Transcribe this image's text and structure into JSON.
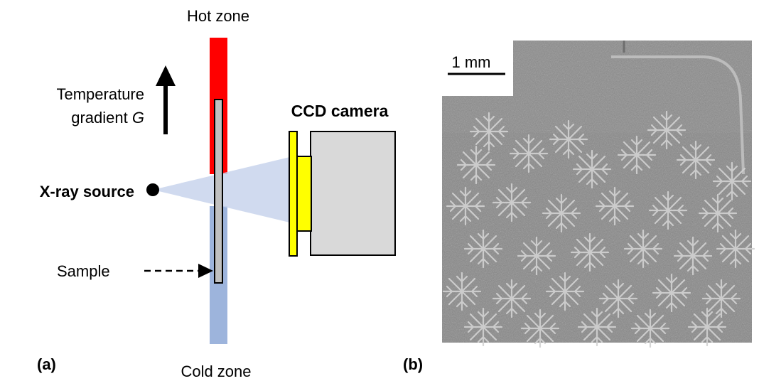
{
  "panel_a": {
    "label": "(a)",
    "hot_zone_label": "Hot zone",
    "cold_zone_label": "Cold zone",
    "gradient_label_line1": "Temperature",
    "gradient_label_line2_prefix": "gradient ",
    "gradient_label_symbol": "G",
    "xray_source_label": "X-ray source",
    "sample_label": "Sample",
    "camera_label": "CCD camera"
  },
  "panel_b": {
    "label": "(b)",
    "scale_bar_label": "1 mm"
  },
  "colors": {
    "hot_zone": "#ff0000",
    "cold_zone": "#9db4dc",
    "beam": "#c8d4ec",
    "sample": "#c0c0c0",
    "camera_body": "#d9d9d9",
    "camera_lens": "#ffff00",
    "micrograph_bg": "#8a8a8a"
  }
}
